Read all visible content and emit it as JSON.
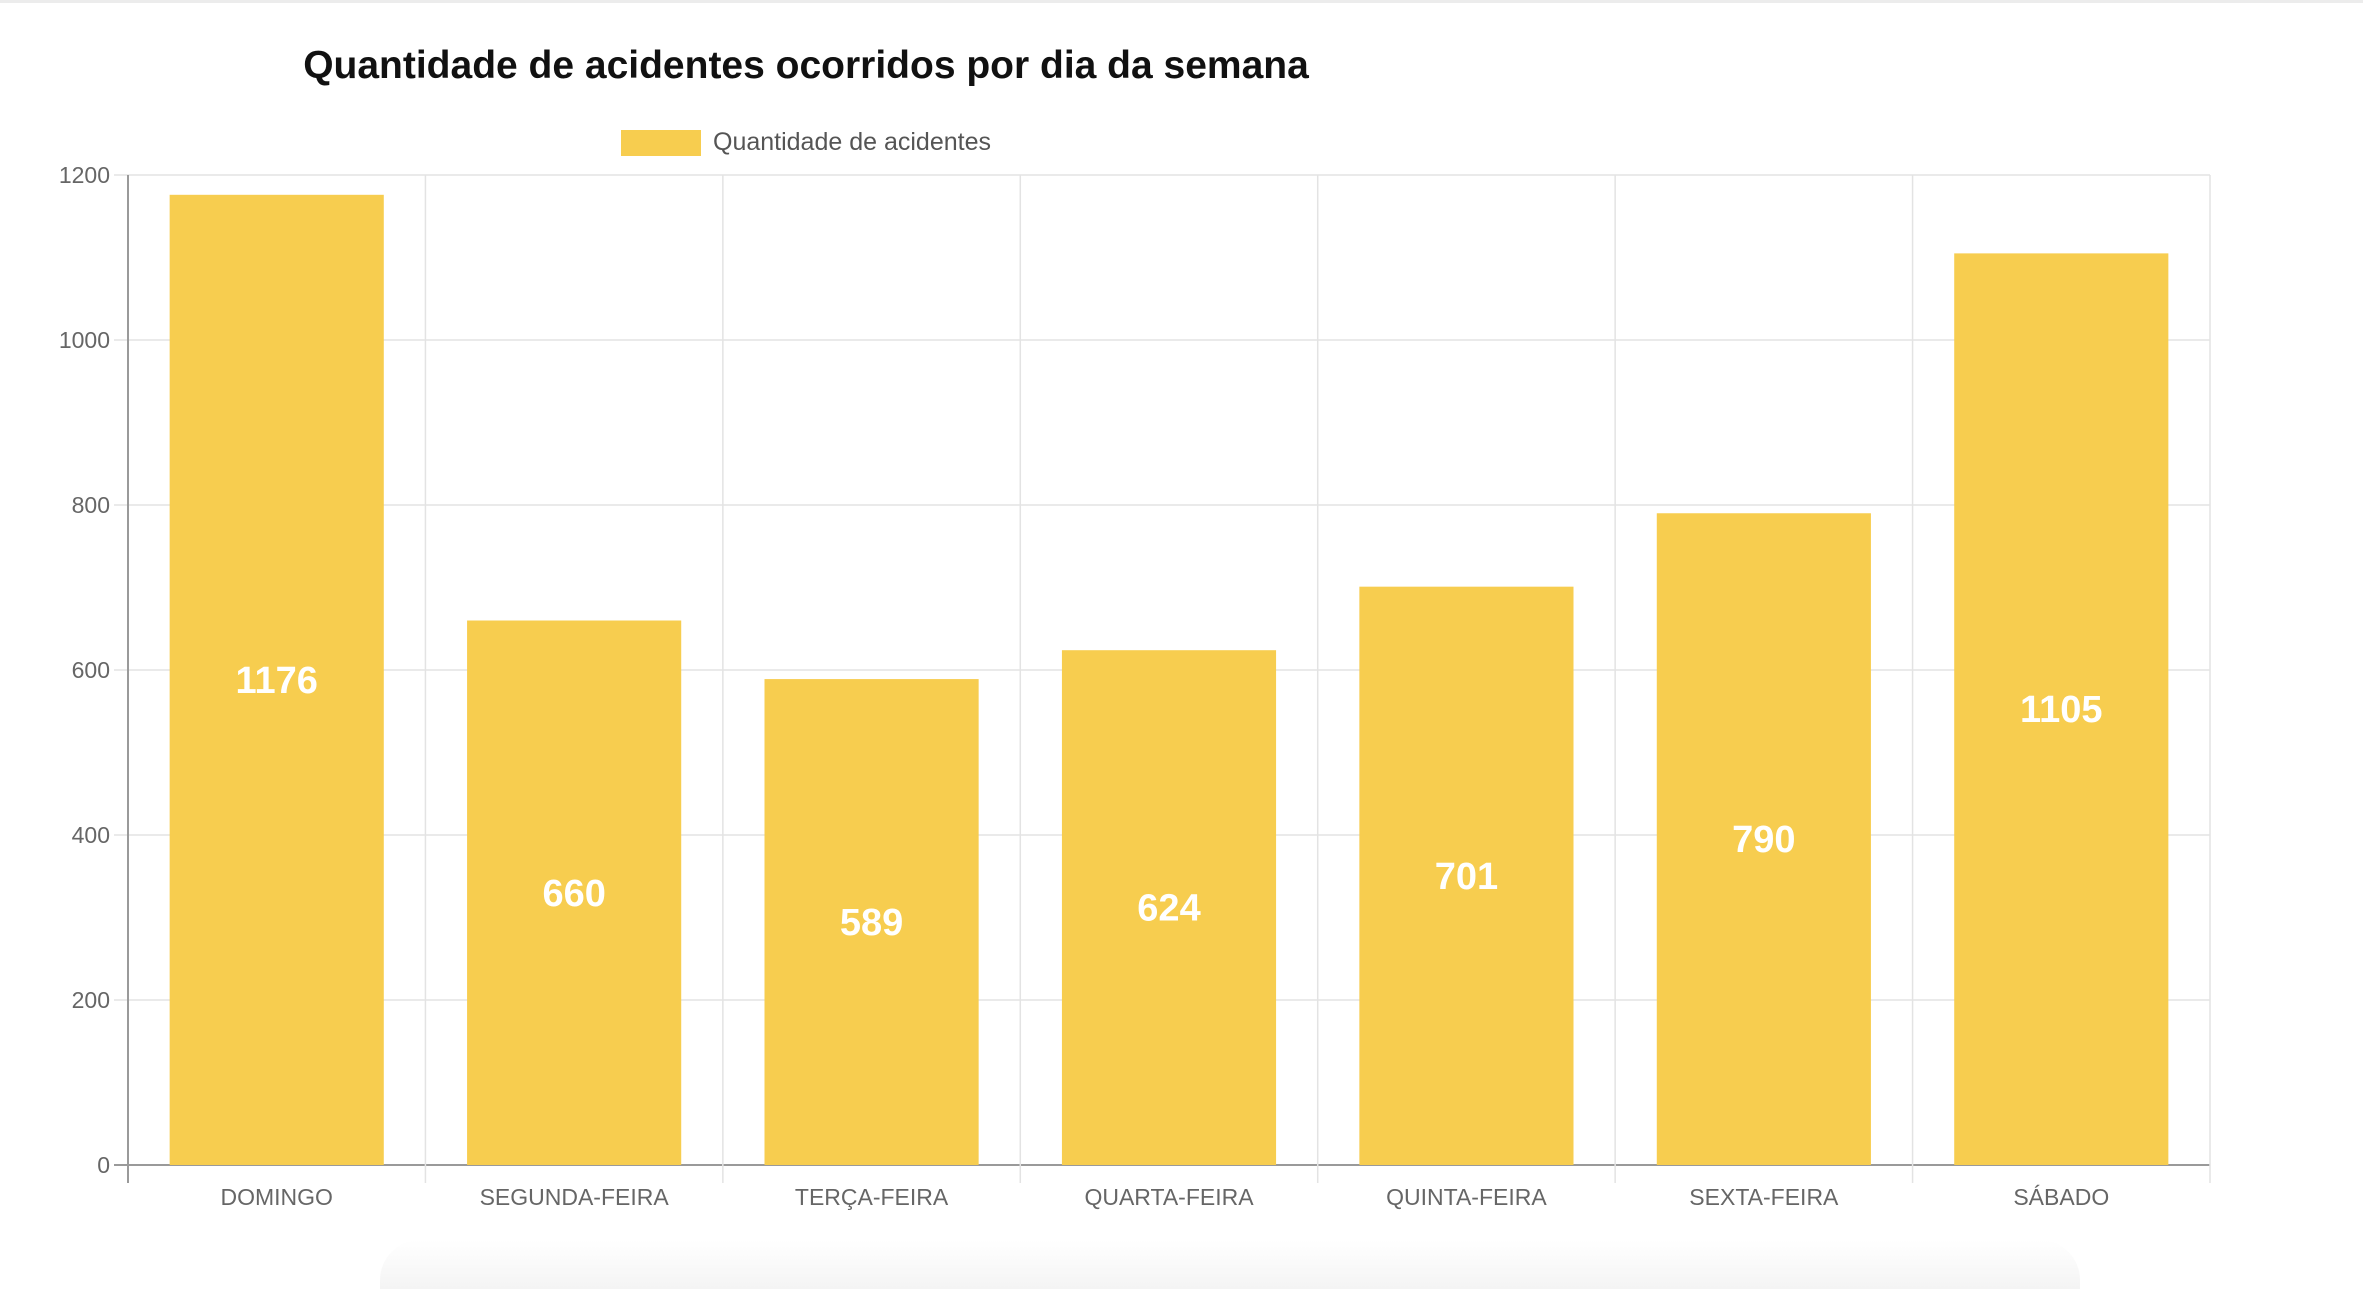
{
  "chart_data": {
    "type": "bar",
    "title": "Quantidade de acidentes ocorridos por dia da semana",
    "categories": [
      "DOMINGO",
      "SEGUNDA-FEIRA",
      "TERÇA-FEIRA",
      "QUARTA-FEIRA",
      "QUINTA-FEIRA",
      "SEXTA-FEIRA",
      "SÁBADO"
    ],
    "series": [
      {
        "name": "Quantidade de acidentes",
        "values": [
          1176,
          660,
          589,
          624,
          701,
          790,
          1105
        ],
        "color": "#F7CD4F"
      }
    ],
    "xlabel": "",
    "ylabel": "",
    "ylim": [
      0,
      1200
    ],
    "yticks": [
      0,
      200,
      400,
      600,
      800,
      1000,
      1200
    ],
    "grid": true,
    "legend_position": "top",
    "data_labels": true,
    "data_label_color": "#ffffff"
  }
}
